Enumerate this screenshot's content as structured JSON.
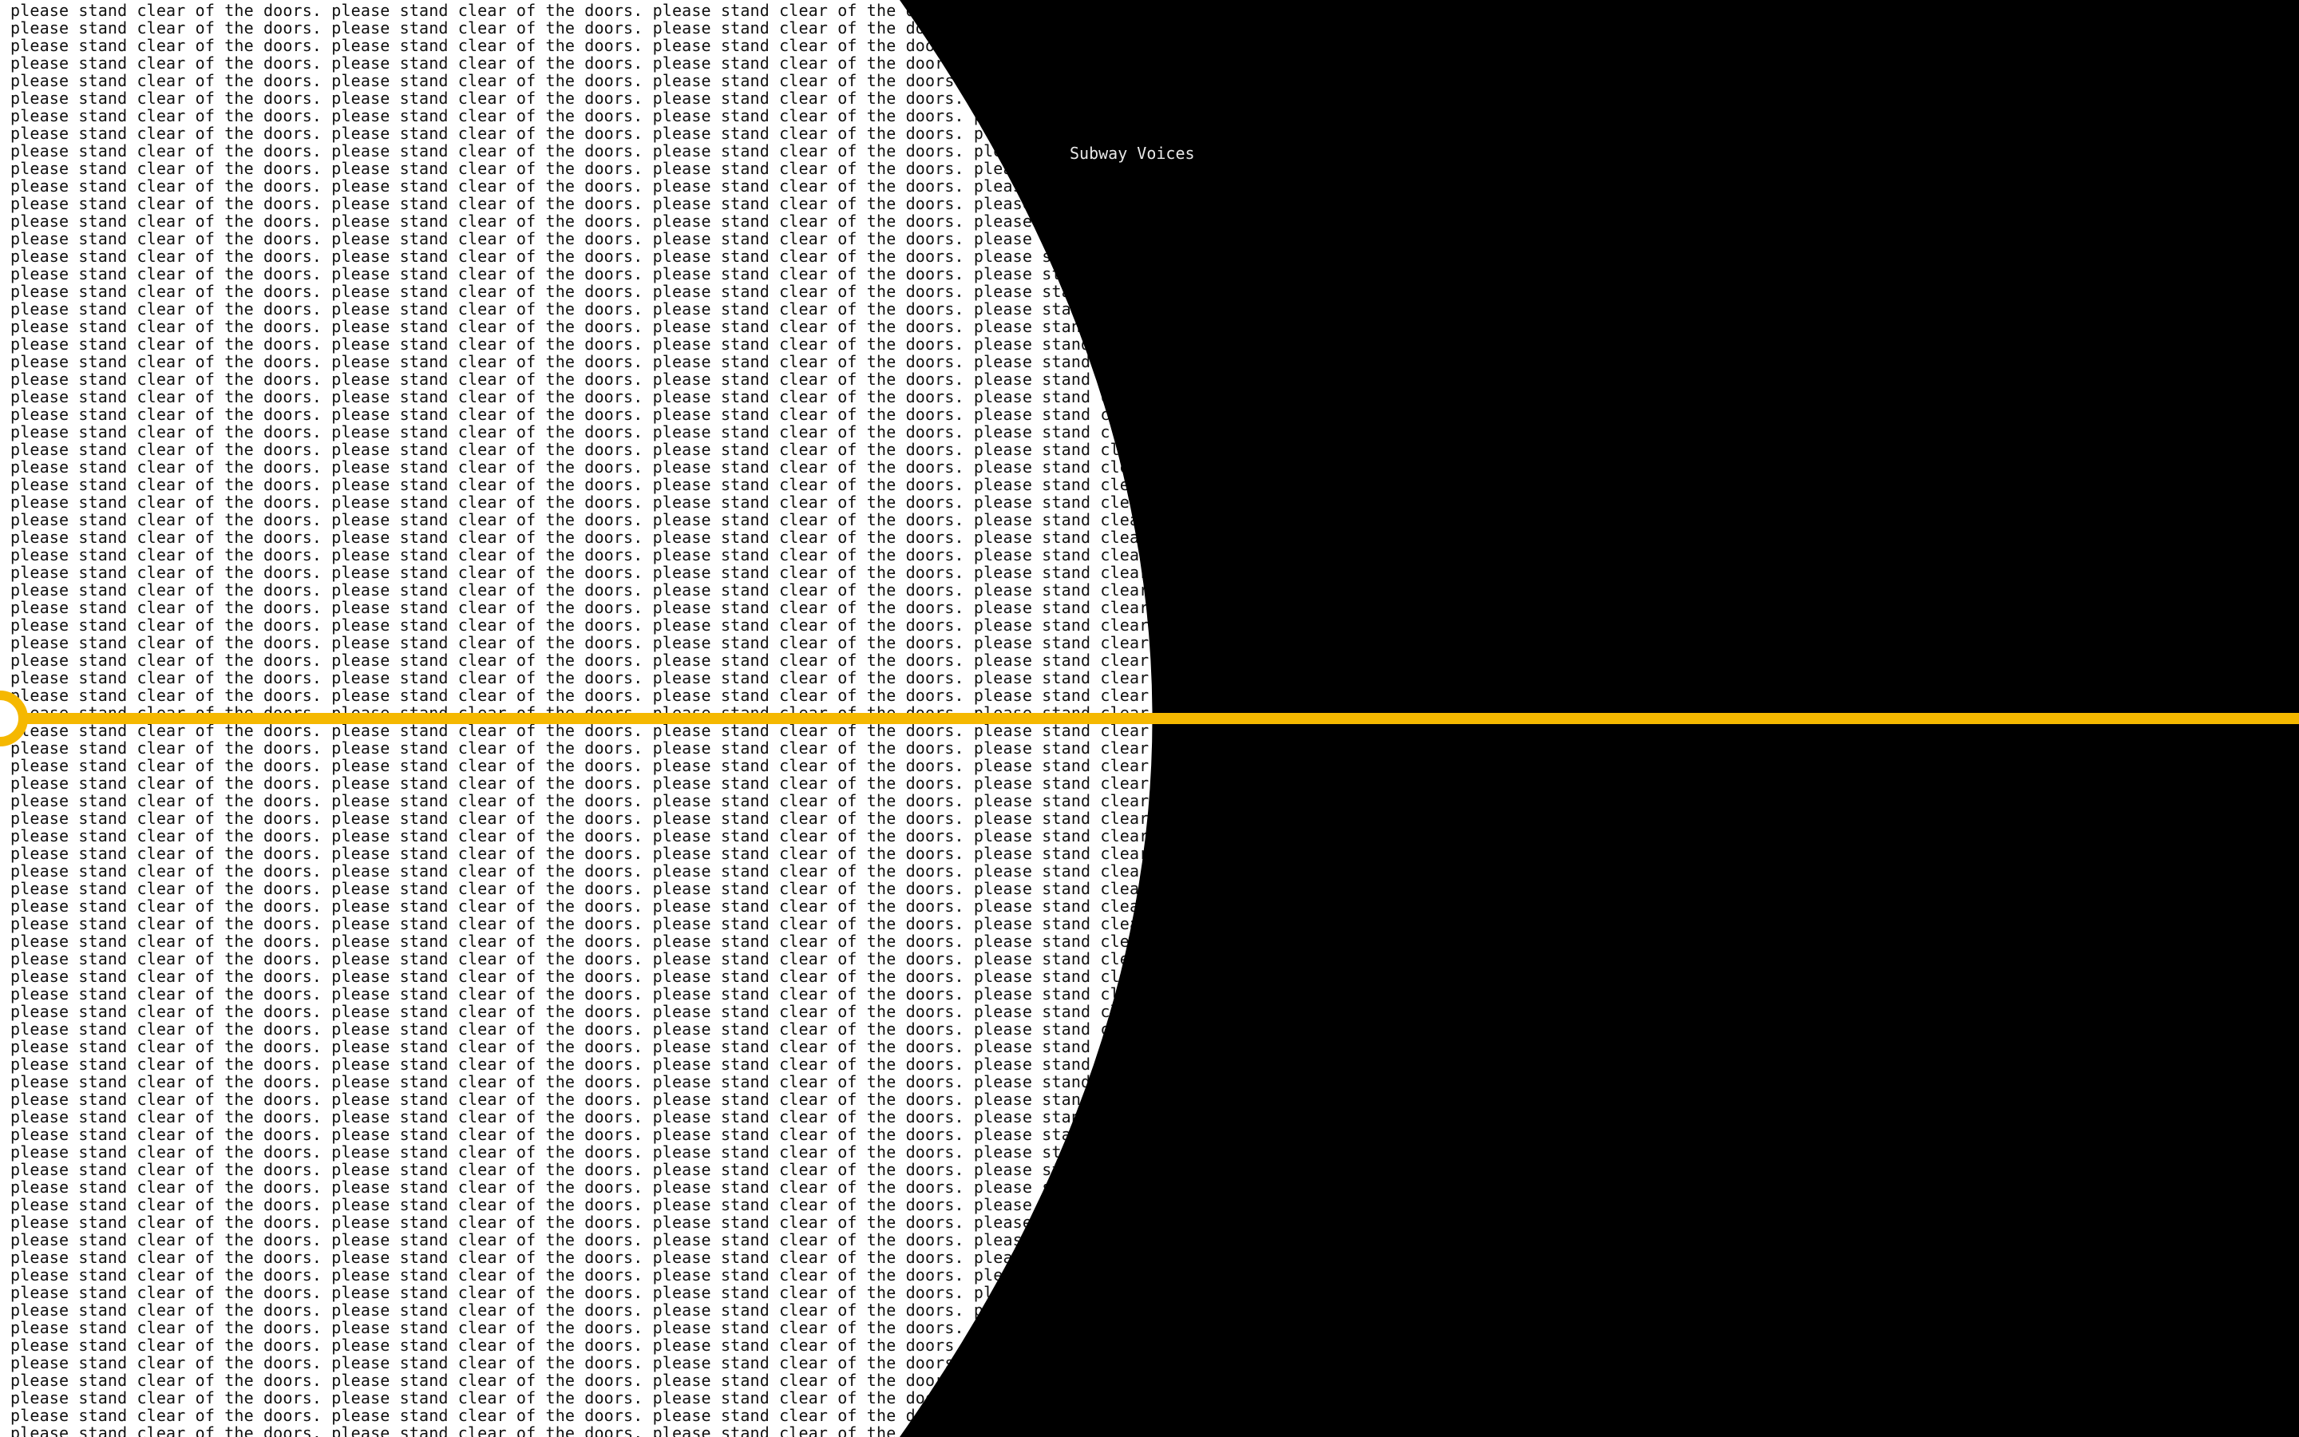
{
  "app": {
    "title": "Subway Voices"
  },
  "background_text": {
    "phrase": "please stand clear of the doors. "
  },
  "colors": {
    "background_light": "#ffffff",
    "background_dark": "#000000",
    "text_dark": "#111111",
    "title_text": "#e8e8e8",
    "line_accent": "#f5b800"
  },
  "icons": {
    "station_marker": "circle-ring-icon"
  }
}
